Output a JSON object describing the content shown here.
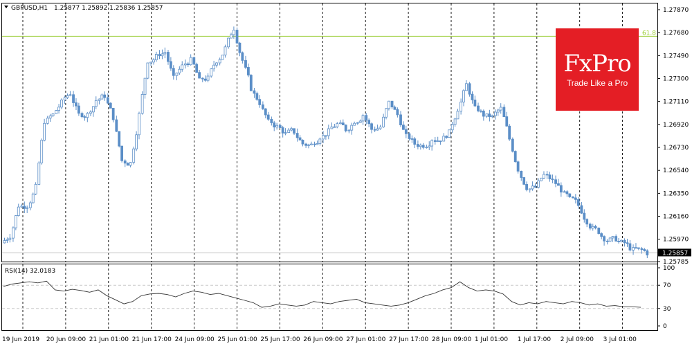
{
  "header": {
    "symbol": "GBPUSD,H1",
    "ohlc": "1.25877 1.25892 1.25836 1.25857",
    "rsi_label": "RSI(14) 32.0183"
  },
  "logo": {
    "brand": "FxPro",
    "tagline": "Trade Like a Pro"
  },
  "fib_label": "61.8",
  "current_price_label": "1.25857",
  "colors": {
    "candle": "#5b8ec7",
    "fib_line": "#9acd32",
    "rsi_line": "#333333",
    "badge": "#e41e25"
  },
  "chart_data": [
    {
      "type": "candlestick",
      "title": "GBPUSD,H1",
      "y_ticks": [
        "1.27870",
        "1.27680",
        "1.27490",
        "1.27300",
        "1.27110",
        "1.26920",
        "1.26730",
        "1.26540",
        "1.26350",
        "1.26160",
        "1.25970",
        "1.25785"
      ],
      "ylim": [
        1.25785,
        1.2787
      ],
      "fib_level": {
        "label": "61.8",
        "price": 1.2765
      },
      "current_price": 1.25857,
      "x_tick_labels": [
        "19 Jun 2019",
        "20 Jun 09:00",
        "21 Jun 01:00",
        "21 Jun 17:00",
        "24 Jun 09:00",
        "25 Jun 01:00",
        "25 Jun 17:00",
        "26 Jun 09:00",
        "27 Jun 01:00",
        "27 Jun 17:00",
        "28 Jun 09:00",
        "1 Jul 01:00",
        "1 Jul 17:00",
        "2 Jul 09:00",
        "3 Jul 01:00"
      ],
      "series": [
        {
          "name": "GBPUSD",
          "points": [
            [
              0,
              1.26
            ],
            [
              1,
              1.2625
            ],
            [
              2,
              1.2625
            ],
            [
              3,
              1.264
            ],
            [
              4,
              1.2695
            ],
            [
              5,
              1.27
            ],
            [
              6,
              1.271
            ],
            [
              7,
              1.2718
            ],
            [
              8,
              1.27
            ],
            [
              9,
              1.27
            ],
            [
              10,
              1.2712
            ],
            [
              11,
              1.2716
            ],
            [
              12,
              1.2698
            ],
            [
              13,
              1.2662
            ],
            [
              14,
              1.266
            ],
            [
              15,
              1.27
            ],
            [
              16,
              1.2745
            ],
            [
              17,
              1.2748
            ],
            [
              18,
              1.2752
            ],
            [
              19,
              1.273
            ],
            [
              20,
              1.274
            ],
            [
              21,
              1.2745
            ],
            [
              22,
              1.2728
            ],
            [
              23,
              1.273
            ],
            [
              24,
              1.2745
            ],
            [
              25,
              1.2755
            ],
            [
              26,
              1.2772
            ],
            [
              27,
              1.2745
            ],
            [
              28,
              1.2722
            ],
            [
              29,
              1.271
            ],
            [
              30,
              1.2694
            ],
            [
              31,
              1.269
            ],
            [
              32,
              1.2684
            ],
            [
              33,
              1.2686
            ],
            [
              34,
              1.2676
            ],
            [
              35,
              1.2675
            ],
            [
              36,
              1.2682
            ],
            [
              37,
              1.2686
            ],
            [
              38,
              1.2692
            ],
            [
              39,
              1.2688
            ],
            [
              40,
              1.2695
            ],
            [
              41,
              1.27
            ],
            [
              42,
              1.2688
            ],
            [
              43,
              1.269
            ],
            [
              44,
              1.271
            ],
            [
              45,
              1.27
            ],
            [
              46,
              1.2682
            ],
            [
              47,
              1.2676
            ],
            [
              48,
              1.2675
            ],
            [
              49,
              1.268
            ],
            [
              50,
              1.268
            ],
            [
              51,
              1.2685
            ],
            [
              52,
              1.2705
            ],
            [
              53,
              1.2725
            ],
            [
              54,
              1.2705
            ],
            [
              55,
              1.27
            ],
            [
              56,
              1.2698
            ],
            [
              57,
              1.2705
            ],
            [
              58,
              1.268
            ],
            [
              59,
              1.2655
            ],
            [
              60,
              1.264
            ],
            [
              61,
              1.264
            ],
            [
              62,
              1.265
            ],
            [
              63,
              1.2645
            ],
            [
              64,
              1.2638
            ],
            [
              65,
              1.263
            ],
            [
              66,
              1.2625
            ],
            [
              67,
              1.2612
            ],
            [
              68,
              1.2605
            ],
            [
              69,
              1.2598
            ],
            [
              70,
              1.2597
            ],
            [
              71,
              1.2594
            ],
            [
              72,
              1.259
            ],
            [
              73,
              1.2588
            ],
            [
              74,
              1.25857
            ]
          ]
        }
      ]
    },
    {
      "type": "line",
      "title": "RSI(14) 32.0183",
      "y_ticks": [
        "100",
        "70",
        "30",
        "0"
      ],
      "ylim": [
        0,
        100
      ],
      "levels": [
        70,
        30
      ],
      "series": [
        {
          "name": "RSI(14)",
          "values": [
            68,
            72,
            74,
            76,
            74,
            77,
            62,
            60,
            63,
            61,
            58,
            62,
            52,
            45,
            38,
            42,
            52,
            55,
            56,
            54,
            50,
            56,
            60,
            58,
            54,
            56,
            52,
            48,
            44,
            40,
            32,
            34,
            38,
            36,
            34,
            36,
            42,
            40,
            38,
            42,
            44,
            46,
            40,
            38,
            36,
            34,
            36,
            40,
            46,
            52,
            56,
            62,
            66,
            76,
            66,
            60,
            62,
            60,
            55,
            42,
            36,
            40,
            38,
            42,
            40,
            38,
            42,
            40,
            36,
            38,
            34,
            35,
            33,
            33,
            32
          ]
        }
      ]
    }
  ]
}
